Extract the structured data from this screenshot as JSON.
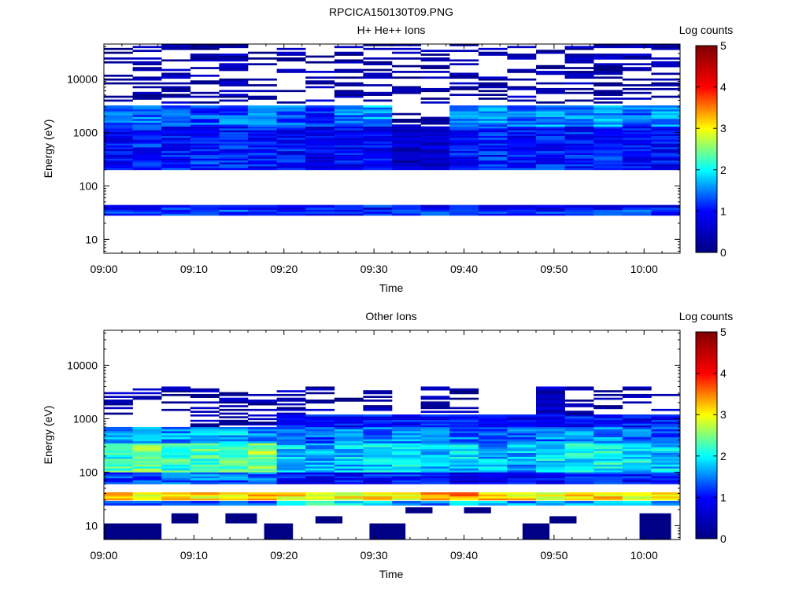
{
  "file_title": "RPCICA150130T09.PNG",
  "colorbar": {
    "label": "Log counts",
    "ticks": [
      "0",
      "1",
      "2",
      "3",
      "4",
      "5"
    ],
    "colormap": [
      "#000080",
      "#0000ff",
      "#00ffff",
      "#ffff00",
      "#ff0000",
      "#800000"
    ]
  },
  "chart_data": [
    {
      "type": "heatmap",
      "title": "H+ He++ Ions",
      "xlabel": "Time",
      "ylabel": "Energy (eV)",
      "x_tick_labels": [
        "09:00",
        "09:10",
        "09:20",
        "09:30",
        "09:40",
        "09:50",
        "10:00"
      ],
      "y_tick_labels": [
        "10",
        "100",
        "1000",
        "10000"
      ],
      "y_scale": "log",
      "xlim_minutes": [
        0,
        64
      ],
      "ylim": [
        5.5,
        45000
      ],
      "clim": [
        0,
        5
      ],
      "time_bins_minutes": [
        0,
        3.2,
        6.4,
        9.6,
        12.8,
        16,
        19.2,
        22.4,
        25.6,
        28.8,
        32,
        35.2,
        38.4,
        41.6,
        44.8,
        48,
        51.2,
        54.4,
        57.6,
        60.8,
        64
      ],
      "bands": [
        {
          "e_range": [
            28,
            36
          ],
          "values": [
            1.2,
            1.2,
            1.3,
            1.3,
            1.3,
            1.2,
            1.1,
            1.1,
            1.1,
            1.2,
            1.2,
            1.3,
            1.5,
            1.3,
            1.3,
            1.2,
            1.3,
            1.2,
            1.3,
            1.2
          ]
        },
        {
          "e_range": [
            36,
            44
          ],
          "values": [
            1.0,
            1.1,
            1.0,
            1.0,
            1.1,
            1.0,
            0.9,
            0.9,
            0.9,
            1.0,
            0.9,
            0.9,
            1.1,
            1.0,
            1.0,
            0.9,
            1.0,
            0.9,
            1.0,
            0.9
          ]
        },
        {
          "e_range": [
            200,
            1300
          ],
          "values": [
            0.9,
            1.1,
            1.0,
            1.1,
            1.0,
            1.0,
            1.0,
            0.8,
            0.9,
            0.9,
            0.5,
            0.6,
            1.0,
            1.1,
            1.0,
            1.1,
            1.0,
            1.1,
            1.0,
            0.9
          ]
        },
        {
          "e_range": [
            1300,
            3200
          ],
          "values": [
            1.3,
            1.4,
            1.4,
            1.3,
            1.4,
            1.4,
            1.3,
            1.2,
            1.5,
            1.6,
            0.3,
            0.3,
            1.5,
            1.5,
            1.5,
            1.6,
            1.5,
            1.6,
            1.5,
            1.5
          ]
        },
        {
          "e_range": [
            3500,
            45000
          ],
          "values": [
            0.3,
            0.3,
            0.3,
            0.3,
            0.3,
            0.3,
            0.3,
            0.3,
            0.3,
            0.3,
            0.3,
            0.3,
            0.3,
            0.3,
            0.3,
            0.3,
            0.3,
            0.3,
            0.3,
            0.3
          ]
        }
      ]
    },
    {
      "type": "heatmap",
      "title": "Other Ions",
      "xlabel": "Time",
      "ylabel": "Energy (eV)",
      "x_tick_labels": [
        "09:00",
        "09:10",
        "09:20",
        "09:30",
        "09:40",
        "09:50",
        "10:00"
      ],
      "y_tick_labels": [
        "10",
        "100",
        "1000",
        "10000"
      ],
      "y_scale": "log",
      "xlim_minutes": [
        0,
        64
      ],
      "ylim": [
        5.5,
        45000
      ],
      "clim": [
        0,
        5
      ],
      "time_bins_minutes": [
        0,
        3.2,
        6.4,
        9.6,
        12.8,
        16,
        19.2,
        22.4,
        25.6,
        28.8,
        32,
        35.2,
        38.4,
        41.6,
        44.8,
        48,
        51.2,
        54.4,
        57.6,
        60.8,
        64
      ],
      "bands": [
        {
          "e_range": [
            24,
            29
          ],
          "values": [
            1.5,
            1.5,
            1.5,
            1.5,
            1.5,
            1.5,
            2.0,
            2.0,
            2.0,
            2.0,
            1.6,
            1.6,
            1.7,
            1.8,
            1.6,
            1.6,
            1.6,
            1.6,
            1.6,
            1.6
          ]
        },
        {
          "e_range": [
            30,
            42
          ],
          "values": [
            3.1,
            3.1,
            3.0,
            3.1,
            3.2,
            3.3,
            3.0,
            3.0,
            3.0,
            3.1,
            3.0,
            3.3,
            3.4,
            3.2,
            3.1,
            3.0,
            3.1,
            3.1,
            3.0,
            3.0
          ]
        },
        {
          "e_range": [
            60,
            100
          ],
          "values": [
            1.2,
            1.3,
            1.4,
            1.5,
            1.4,
            1.4,
            0.9,
            0.9,
            1.0,
            1.0,
            1.1,
            1.0,
            0.8,
            1.0,
            0.9,
            1.1,
            1.2,
            1.1,
            1.0,
            1.0
          ]
        },
        {
          "e_range": [
            100,
            350
          ],
          "values": [
            2.2,
            2.4,
            2.2,
            2.3,
            2.4,
            2.5,
            1.8,
            1.7,
            1.8,
            1.9,
            1.9,
            1.8,
            1.8,
            1.7,
            1.7,
            1.9,
            2.0,
            2.0,
            1.9,
            1.8
          ]
        },
        {
          "e_range": [
            350,
            700
          ],
          "values": [
            1.6,
            1.7,
            1.6,
            1.7,
            1.8,
            1.6,
            1.4,
            1.4,
            1.5,
            1.4,
            1.5,
            1.5,
            1.4,
            1.4,
            1.3,
            1.5,
            1.6,
            1.5,
            1.4,
            1.4
          ]
        },
        {
          "e_range": [
            700,
            1200
          ],
          "values": [
            0.0,
            0.0,
            0.0,
            0.4,
            0.4,
            0.4,
            1.0,
            1.0,
            1.0,
            1.0,
            1.0,
            1.0,
            1.0,
            0.9,
            0.9,
            1.0,
            1.0,
            1.0,
            1.0,
            1.0
          ]
        },
        {
          "e_range": [
            1200,
            4000
          ],
          "values": [
            0.3,
            0.3,
            0.3,
            0.3,
            0.3,
            0.3,
            0.3,
            0.3,
            0.3,
            0.3,
            0.0,
            0.3,
            0.3,
            0.0,
            0.0,
            0.5,
            0.3,
            0.3,
            0.3,
            0.3
          ]
        }
      ],
      "low_energy_patches": [
        {
          "t_range": [
            0,
            6.4
          ],
          "e_range": [
            5.5,
            11
          ]
        },
        {
          "t_range": [
            7.5,
            10.5
          ],
          "e_range": [
            11,
            17
          ]
        },
        {
          "t_range": [
            13.5,
            17
          ],
          "e_range": [
            11,
            17
          ]
        },
        {
          "t_range": [
            17.8,
            21
          ],
          "e_range": [
            5.5,
            11
          ]
        },
        {
          "t_range": [
            23.5,
            26.5
          ],
          "e_range": [
            11,
            15
          ]
        },
        {
          "t_range": [
            29.5,
            33.5
          ],
          "e_range": [
            5.5,
            11
          ]
        },
        {
          "t_range": [
            33.5,
            36.5
          ],
          "e_range": [
            17,
            22
          ]
        },
        {
          "t_range": [
            40,
            43
          ],
          "e_range": [
            17,
            22
          ]
        },
        {
          "t_range": [
            46.5,
            49.5
          ],
          "e_range": [
            5.5,
            11
          ]
        },
        {
          "t_range": [
            49.5,
            52.5
          ],
          "e_range": [
            11,
            15
          ]
        },
        {
          "t_range": [
            59.5,
            63
          ],
          "e_range": [
            5.5,
            17
          ]
        }
      ]
    }
  ]
}
